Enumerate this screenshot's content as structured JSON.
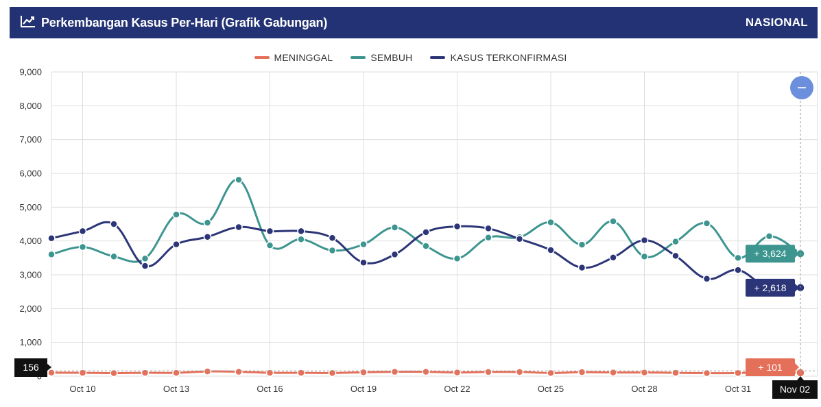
{
  "header": {
    "title": "Perkembangan Kasus Per-Hari (Grafik Gabungan)",
    "scope": "NASIONAL",
    "title_icon": "line-chart-icon"
  },
  "colors": {
    "header_bg": "#233274",
    "meninggal": "#e5705a",
    "sembuh": "#3d9590",
    "terkonfirmasi": "#2c3577",
    "zoom_button": "#6b8fdd"
  },
  "zoom_button": {
    "icon": "minus-icon",
    "label": "−"
  },
  "chart_data": {
    "type": "line",
    "x": [
      "Oct 09",
      "Oct 10",
      "Oct 11",
      "Oct 12",
      "Oct 13",
      "Oct 14",
      "Oct 15",
      "Oct 16",
      "Oct 17",
      "Oct 18",
      "Oct 19",
      "Oct 20",
      "Oct 21",
      "Oct 22",
      "Oct 23",
      "Oct 24",
      "Oct 25",
      "Oct 26",
      "Oct 27",
      "Oct 28",
      "Oct 29",
      "Oct 30",
      "Oct 31",
      "Nov 01",
      "Nov 02"
    ],
    "x_tick_labels": [
      "Oct 10",
      "Oct 13",
      "Oct 16",
      "Oct 19",
      "Oct 22",
      "Oct 25",
      "Oct 28",
      "Oct 31"
    ],
    "y_tick_labels": [
      "0",
      "1,000",
      "2,000",
      "3,000",
      "4,000",
      "5,000",
      "6,000",
      "7,000",
      "8,000",
      "9,000"
    ],
    "ylim": [
      0,
      9000
    ],
    "grid": true,
    "legend_position": "top-center",
    "series": [
      {
        "name": "MENINGGAL",
        "color": "#e5705a",
        "values": [
          105,
          100,
          90,
          100,
          100,
          140,
          130,
          100,
          100,
          95,
          115,
          130,
          130,
          110,
          125,
          125,
          95,
          120,
          110,
          110,
          100,
          90,
          95,
          125,
          101
        ]
      },
      {
        "name": "SEMBUH",
        "color": "#3d9590",
        "values": [
          3600,
          3820,
          3540,
          3480,
          4780,
          4540,
          5810,
          3870,
          4050,
          3720,
          3900,
          4400,
          3850,
          3480,
          4100,
          4110,
          4550,
          3890,
          4580,
          3540,
          3980,
          4520,
          3500,
          4140,
          3624
        ]
      },
      {
        "name": "KASUS TERKONFIRMASI",
        "color": "#2c3577",
        "values": [
          4080,
          4290,
          4500,
          3260,
          3900,
          4120,
          4410,
          4290,
          4290,
          4090,
          3360,
          3600,
          4260,
          4430,
          4370,
          4060,
          3730,
          3210,
          3510,
          4020,
          3560,
          2880,
          3140,
          2580,
          2618
        ]
      }
    ],
    "annotations": {
      "meninggal_label": "+ 101",
      "sembuh_label": "+ 3,624",
      "terkonfirmasi_label": "+ 2,618",
      "crosshair_y_label": "156",
      "crosshair_x_label": "Nov 02"
    }
  }
}
